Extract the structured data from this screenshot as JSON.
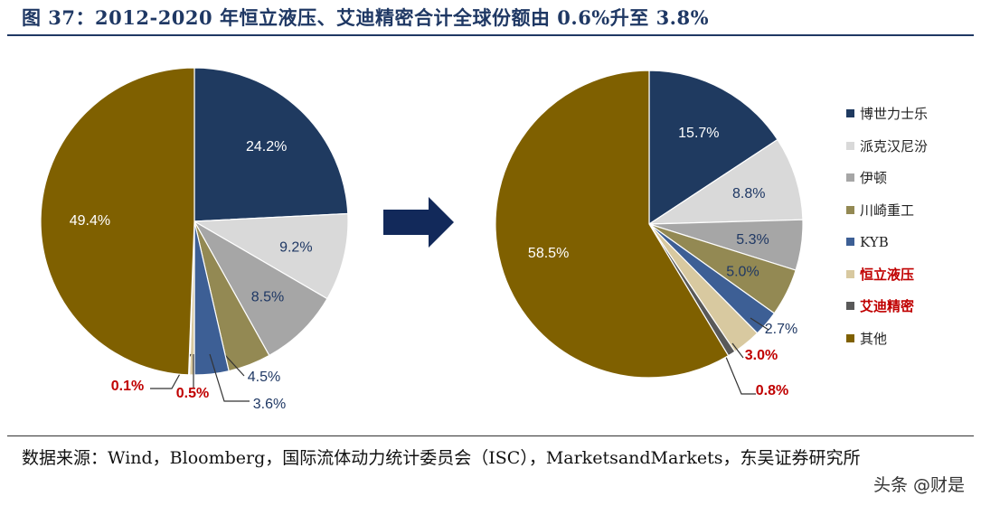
{
  "title": "图 37：2012-2020 年恒立液压、艾迪精密合计全球份额由 0.6%升至 3.8%",
  "source": "数据来源：Wind，Bloomberg，国际流体动力统计委员会（ISC），MarketsandMarkets，东吴证券研究所",
  "watermark": "头条 @财是",
  "colors": {
    "accent": "#1f3864",
    "arrow": "#12295a",
    "highlight_text": "#c00000",
    "label_text": "#1f3864"
  },
  "legend": [
    {
      "label": "博世力士乐",
      "color": "#1f3a60",
      "highlight": false
    },
    {
      "label": "派克汉尼汾",
      "color": "#d9d9d9",
      "highlight": false
    },
    {
      "label": "伊顿",
      "color": "#a6a6a6",
      "highlight": false
    },
    {
      "label": "川崎重工",
      "color": "#938953",
      "highlight": false
    },
    {
      "label": "KYB",
      "color": "#3d5f95",
      "highlight": false
    },
    {
      "label": "恒立液压",
      "color": "#d8c9a0",
      "highlight": true
    },
    {
      "label": "艾迪精密",
      "color": "#595959",
      "highlight": true
    },
    {
      "label": "其他",
      "color": "#7f6000",
      "highlight": false
    }
  ],
  "chart_data": [
    {
      "type": "pie",
      "series_labels": [
        "博世力士乐",
        "派克汉尼汾",
        "伊顿",
        "川崎重工",
        "KYB",
        "恒立液压",
        "艾迪精密",
        "其他"
      ],
      "values": [
        24.2,
        9.2,
        8.5,
        4.5,
        3.6,
        0.5,
        0.1,
        49.4
      ],
      "value_labels": [
        "24.2%",
        "9.2%",
        "8.5%",
        "4.5%",
        "3.6%",
        "0.5%",
        "0.1%",
        "49.4%"
      ]
    },
    {
      "type": "pie",
      "series_labels": [
        "博世力士乐",
        "派克汉尼汾",
        "伊顿",
        "川崎重工",
        "KYB",
        "恒立液压",
        "艾迪精密",
        "其他"
      ],
      "values": [
        15.7,
        8.8,
        5.3,
        5.0,
        2.7,
        3.0,
        0.8,
        58.5
      ],
      "value_labels": [
        "15.7%",
        "8.8%",
        "5.3%",
        "5.0%",
        "2.7%",
        "3.0%",
        "0.8%",
        "58.5%"
      ]
    }
  ]
}
